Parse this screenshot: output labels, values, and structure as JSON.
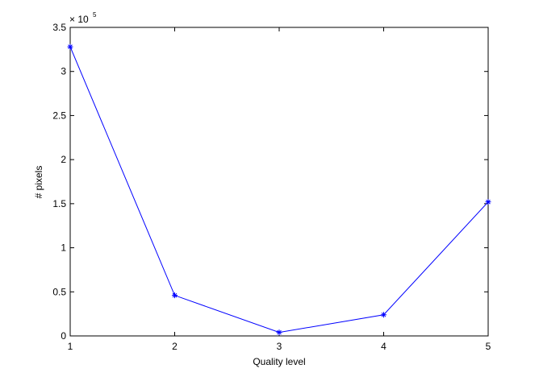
{
  "chart_data": {
    "type": "line",
    "x": [
      1,
      2,
      3,
      4,
      5
    ],
    "series": [
      {
        "color": "#0000ff",
        "marker": "*",
        "values": [
          3.28,
          0.46,
          0.04,
          0.24,
          1.52
        ]
      }
    ],
    "xlim": [
      1,
      5
    ],
    "xticks": [
      1,
      2,
      3,
      4,
      5
    ],
    "ylim": [
      0,
      3.5
    ],
    "yticks": [
      0,
      0.5,
      1,
      1.5,
      2,
      2.5,
      3,
      3.5
    ],
    "y_multiplier": {
      "base": "× 10",
      "exponent": "5"
    },
    "xlabel": "Quality level",
    "ylabel": "# pixels",
    "grid": false
  }
}
